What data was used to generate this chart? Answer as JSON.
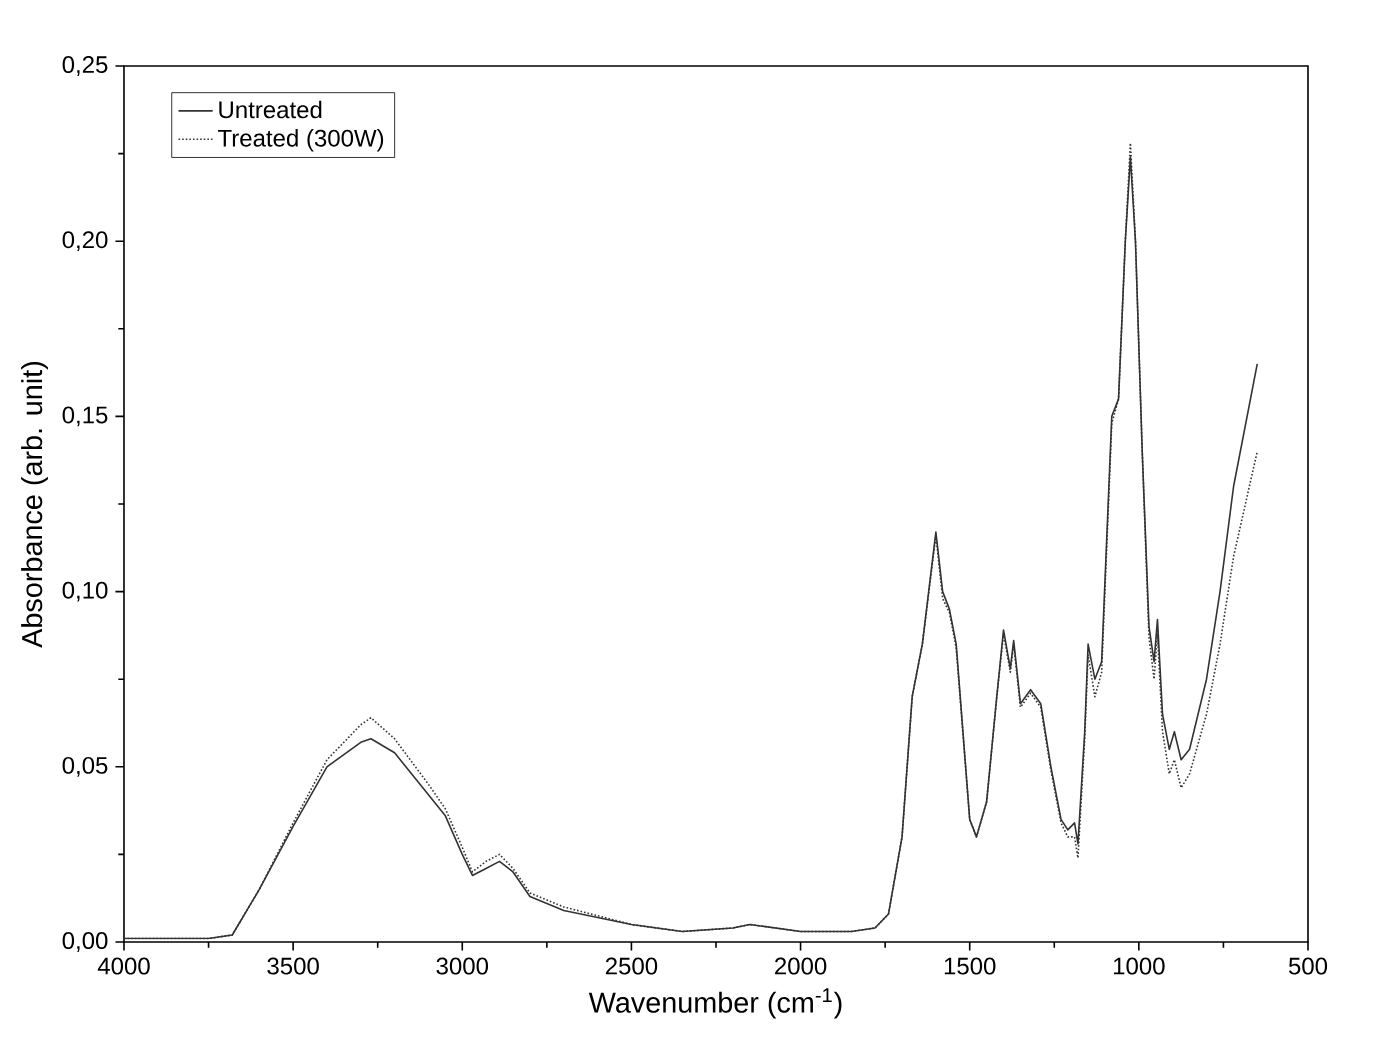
{
  "chart_data": {
    "type": "line",
    "xlabel": "Wavenumber (cm$^{-1}$)",
    "ylabel": "Absorbance (arb. unit)",
    "xlim": [
      4000,
      500
    ],
    "ylim": [
      0,
      0.25
    ],
    "xticks": [
      4000,
      3500,
      3000,
      2500,
      2000,
      1500,
      1000,
      500
    ],
    "yticks": [
      {
        "value": 0,
        "label": "0,00"
      },
      {
        "value": 0.05,
        "label": "0,05"
      },
      {
        "value": 0.1,
        "label": "0,10"
      },
      {
        "value": 0.15,
        "label": "0,15"
      },
      {
        "value": 0.2,
        "label": "0,20"
      },
      {
        "value": 0.25,
        "label": "0,25"
      }
    ],
    "legend": "top left",
    "grid": false,
    "marker": "none",
    "series": [
      {
        "name": "Untreated",
        "color": "#333333",
        "line_style": "solid",
        "x": [
          4000,
          3750,
          3680,
          3600,
          3500,
          3400,
          3300,
          3270,
          3200,
          3100,
          3050,
          3000,
          2970,
          2930,
          2890,
          2850,
          2800,
          2700,
          2500,
          2350,
          2200,
          2150,
          2000,
          1850,
          1780,
          1740,
          1700,
          1670,
          1640,
          1600,
          1580,
          1560,
          1540,
          1500,
          1480,
          1450,
          1420,
          1400,
          1380,
          1370,
          1350,
          1320,
          1290,
          1260,
          1230,
          1210,
          1190,
          1180,
          1160,
          1150,
          1130,
          1110,
          1080,
          1060,
          1040,
          1025,
          1010,
          990,
          970,
          955,
          945,
          930,
          910,
          895,
          875,
          850,
          800,
          760,
          720,
          650
        ],
        "values": [
          0.001,
          0.001,
          0.002,
          0.015,
          0.033,
          0.05,
          0.057,
          0.058,
          0.054,
          0.042,
          0.036,
          0.025,
          0.019,
          0.021,
          0.023,
          0.02,
          0.013,
          0.009,
          0.005,
          0.003,
          0.004,
          0.005,
          0.003,
          0.003,
          0.004,
          0.008,
          0.03,
          0.07,
          0.085,
          0.117,
          0.1,
          0.095,
          0.085,
          0.035,
          0.03,
          0.04,
          0.07,
          0.089,
          0.078,
          0.086,
          0.068,
          0.072,
          0.068,
          0.05,
          0.035,
          0.032,
          0.034,
          0.028,
          0.06,
          0.085,
          0.075,
          0.08,
          0.15,
          0.155,
          0.2,
          0.224,
          0.2,
          0.14,
          0.09,
          0.08,
          0.092,
          0.065,
          0.055,
          0.06,
          0.052,
          0.055,
          0.075,
          0.1,
          0.13,
          0.165
        ]
      },
      {
        "name": "Treated (300W)",
        "color": "#333333",
        "line_style": "dotted",
        "x": [
          4000,
          3750,
          3680,
          3600,
          3500,
          3400,
          3300,
          3270,
          3200,
          3100,
          3050,
          3000,
          2970,
          2930,
          2890,
          2850,
          2800,
          2700,
          2500,
          2350,
          2200,
          2150,
          2000,
          1850,
          1780,
          1740,
          1700,
          1670,
          1640,
          1600,
          1580,
          1560,
          1540,
          1500,
          1480,
          1450,
          1420,
          1400,
          1380,
          1370,
          1350,
          1320,
          1290,
          1260,
          1230,
          1210,
          1190,
          1180,
          1160,
          1150,
          1130,
          1110,
          1080,
          1060,
          1040,
          1025,
          1010,
          990,
          970,
          955,
          945,
          930,
          910,
          895,
          875,
          850,
          800,
          760,
          720,
          650
        ],
        "values": [
          0.001,
          0.001,
          0.002,
          0.015,
          0.034,
          0.052,
          0.062,
          0.064,
          0.058,
          0.045,
          0.038,
          0.027,
          0.02,
          0.023,
          0.025,
          0.021,
          0.014,
          0.01,
          0.005,
          0.003,
          0.004,
          0.005,
          0.003,
          0.003,
          0.004,
          0.008,
          0.03,
          0.07,
          0.085,
          0.116,
          0.098,
          0.094,
          0.084,
          0.035,
          0.03,
          0.04,
          0.07,
          0.088,
          0.077,
          0.085,
          0.067,
          0.071,
          0.067,
          0.049,
          0.034,
          0.03,
          0.03,
          0.024,
          0.058,
          0.082,
          0.07,
          0.077,
          0.148,
          0.155,
          0.2,
          0.228,
          0.2,
          0.14,
          0.087,
          0.075,
          0.088,
          0.06,
          0.048,
          0.052,
          0.044,
          0.048,
          0.065,
          0.085,
          0.11,
          0.14
        ]
      }
    ]
  }
}
